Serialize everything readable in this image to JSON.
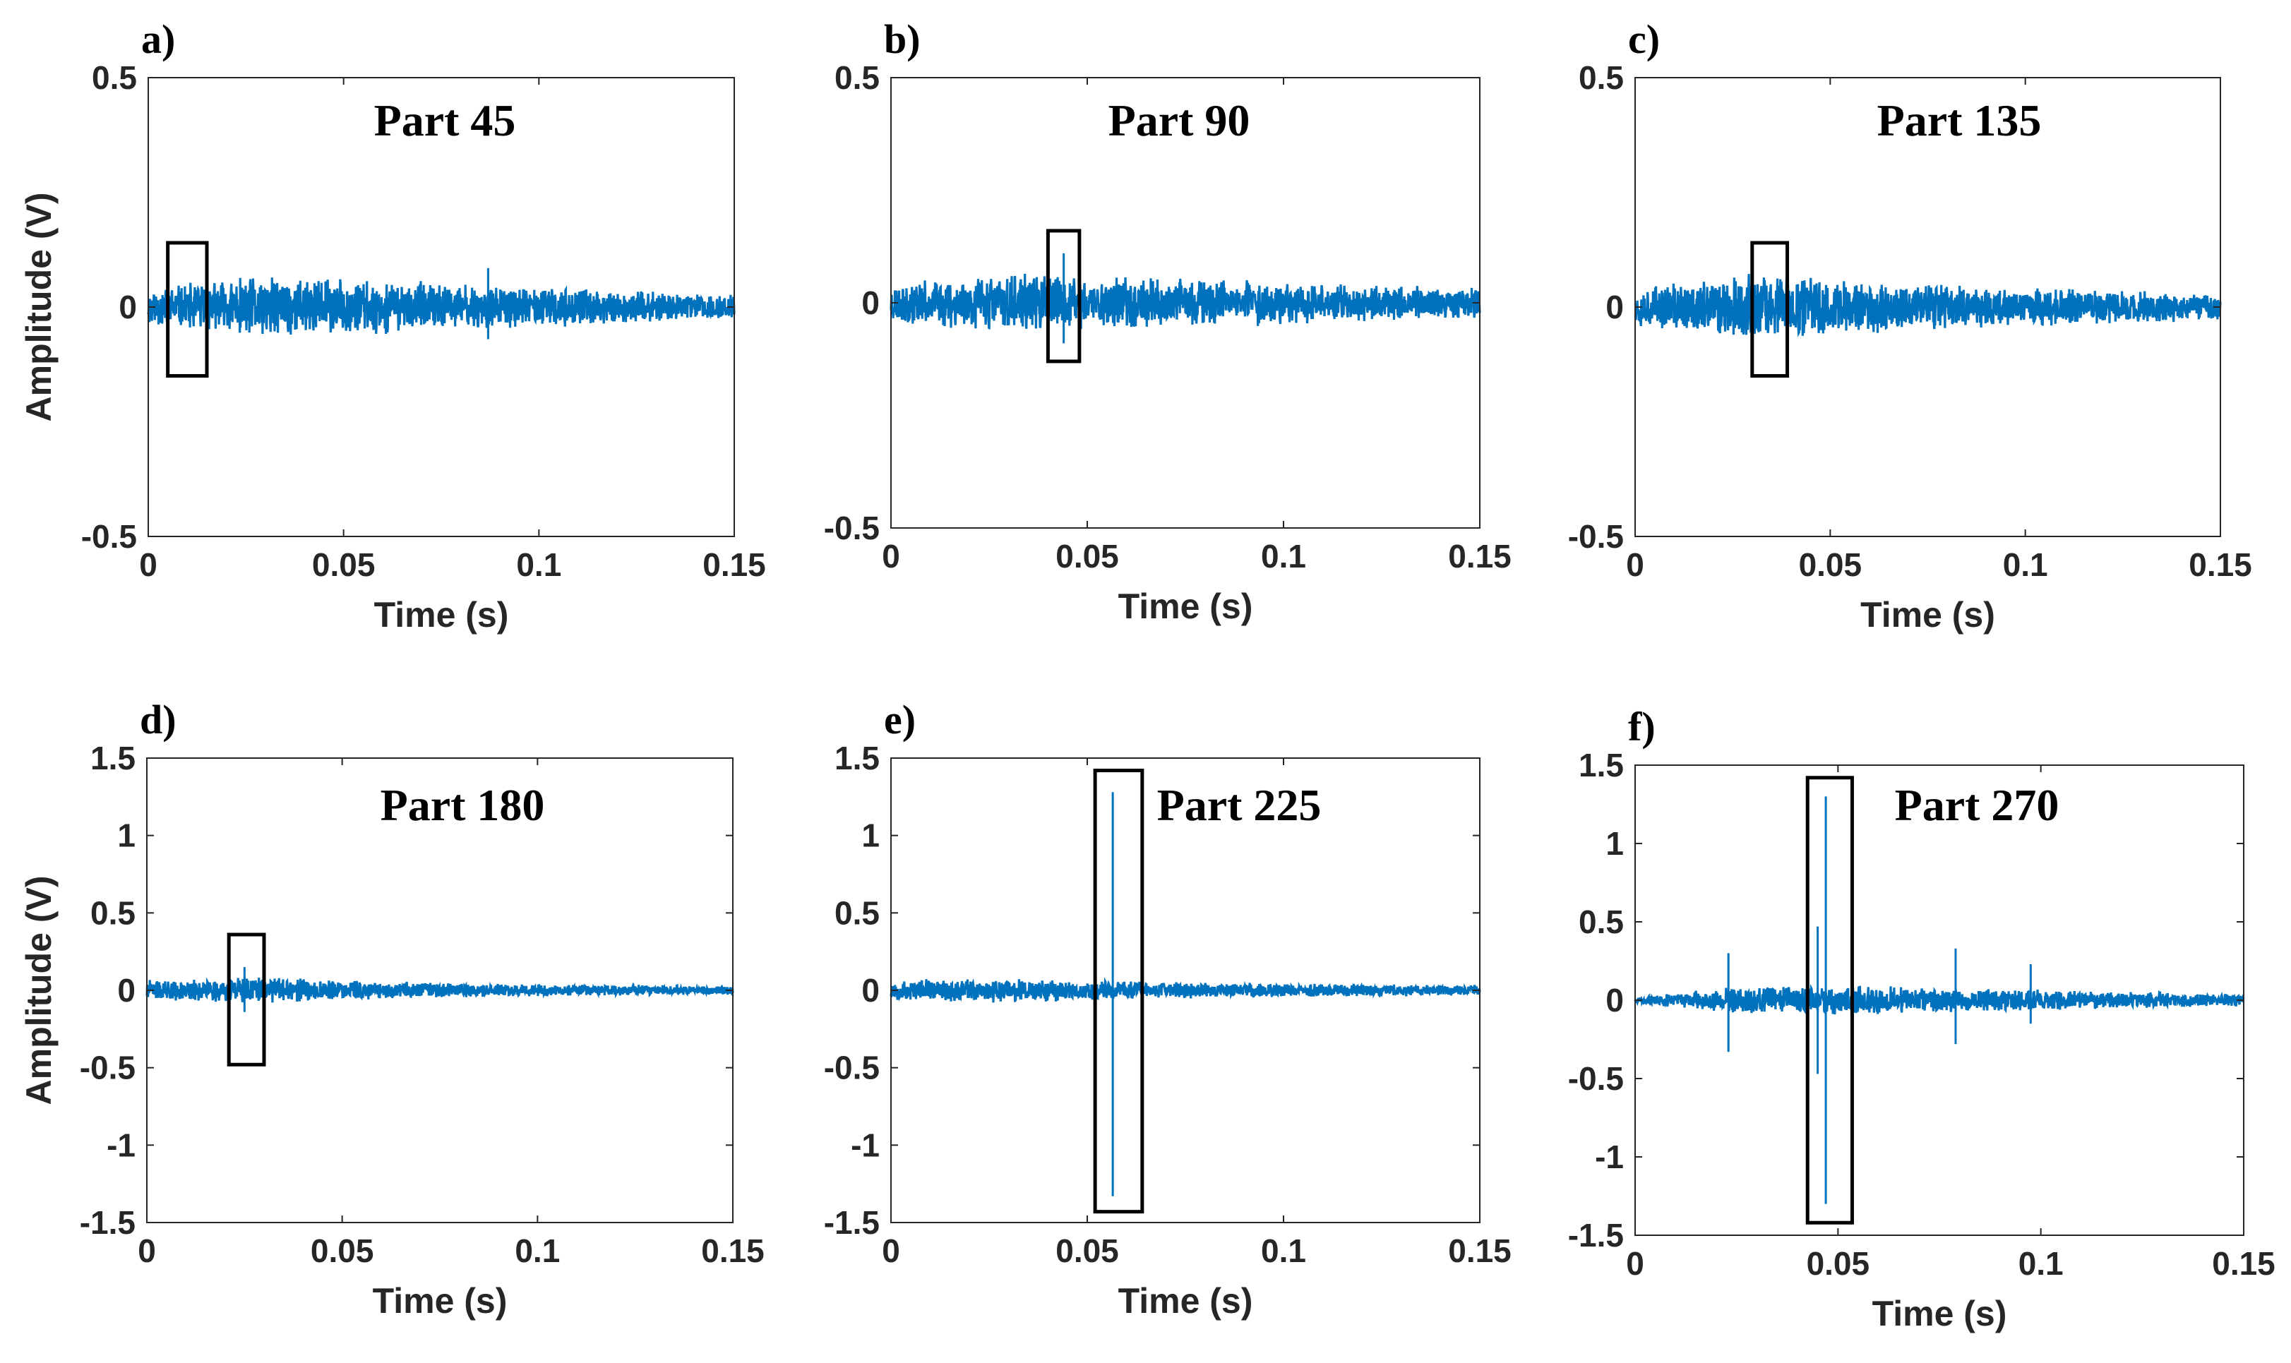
{
  "chart_data": [
    {
      "panel_label": "a)",
      "title": "Part 45",
      "type": "line",
      "xlabel": "Time (s)",
      "ylabel": "Amplitude (V)",
      "xlim": [
        0,
        0.15
      ],
      "ylim": [
        -0.5,
        0.5
      ],
      "xticks": [
        0,
        0.05,
        0.1,
        0.15
      ],
      "xtick_labels": [
        "0",
        "0.05",
        "0.1",
        "0.15"
      ],
      "yticks": [
        -0.5,
        0,
        0.5
      ],
      "ytick_labels": [
        "-0.5",
        "0",
        "0.5"
      ],
      "signal": {
        "envelope": [
          [
            0,
            0.045
          ],
          [
            0.03,
            0.072
          ],
          [
            0.075,
            0.055
          ],
          [
            0.15,
            0.028
          ]
        ],
        "spikes": [
          {
            "x": 0.087,
            "up": 0.085,
            "down": -0.07
          }
        ],
        "seed": 11
      },
      "highlight_box": {
        "x0": 0.005,
        "x1": 0.015,
        "y0": -0.15,
        "y1": 0.14
      }
    },
    {
      "panel_label": "b)",
      "title": "Part 90",
      "type": "line",
      "xlabel": "Time (s)",
      "ylabel": "",
      "xlim": [
        0,
        0.15
      ],
      "ylim": [
        -0.5,
        0.5
      ],
      "xticks": [
        0,
        0.05,
        0.1,
        0.15
      ],
      "xtick_labels": [
        "0",
        "0.05",
        "0.1",
        "0.15"
      ],
      "yticks": [
        -0.5,
        0,
        0.5
      ],
      "ytick_labels": [
        "-0.5",
        "0",
        "0.5"
      ],
      "signal": {
        "envelope": [
          [
            0,
            0.045
          ],
          [
            0.03,
            0.07
          ],
          [
            0.075,
            0.058
          ],
          [
            0.15,
            0.035
          ]
        ],
        "spikes": [
          {
            "x": 0.044,
            "up": 0.11,
            "down": -0.09
          }
        ],
        "seed": 23
      },
      "highlight_box": {
        "x0": 0.04,
        "x1": 0.048,
        "y0": -0.13,
        "y1": 0.16
      }
    },
    {
      "panel_label": "c)",
      "title": "Part 135",
      "type": "line",
      "xlabel": "Time (s)",
      "ylabel": "",
      "xlim": [
        0,
        0.15
      ],
      "ylim": [
        -0.5,
        0.5
      ],
      "xticks": [
        0,
        0.05,
        0.1,
        0.15
      ],
      "xtick_labels": [
        "0",
        "0.05",
        "0.1",
        "0.15"
      ],
      "yticks": [
        -0.5,
        0,
        0.5
      ],
      "ytick_labels": [
        "-0.5",
        "0",
        "0.5"
      ],
      "signal": {
        "envelope": [
          [
            0,
            0.045
          ],
          [
            0.03,
            0.078
          ],
          [
            0.075,
            0.055
          ],
          [
            0.15,
            0.03
          ]
        ],
        "spikes": [],
        "seed": 37
      },
      "highlight_box": {
        "x0": 0.03,
        "x1": 0.039,
        "y0": -0.15,
        "y1": 0.14
      }
    },
    {
      "panel_label": "d)",
      "title": "Part 180",
      "type": "line",
      "xlabel": "Time (s)",
      "ylabel": "Amplitude (V)",
      "xlim": [
        0,
        0.15
      ],
      "ylim": [
        -1.5,
        1.5
      ],
      "xticks": [
        0,
        0.05,
        0.1,
        0.15
      ],
      "xtick_labels": [
        "0",
        "0.05",
        "0.1",
        "0.15"
      ],
      "yticks": [
        -1.5,
        -1,
        -0.5,
        0,
        0.5,
        1,
        1.5
      ],
      "ytick_labels": [
        "-1.5",
        "-1",
        "-0.5",
        "0",
        "0.5",
        "1",
        "1.5"
      ],
      "signal": {
        "envelope": [
          [
            0,
            0.07
          ],
          [
            0.03,
            0.085
          ],
          [
            0.075,
            0.05
          ],
          [
            0.15,
            0.03
          ]
        ],
        "spikes": [
          {
            "x": 0.025,
            "up": 0.15,
            "down": -0.14
          }
        ],
        "seed": 41
      },
      "highlight_box": {
        "x0": 0.021,
        "x1": 0.03,
        "y0": -0.48,
        "y1": 0.36
      }
    },
    {
      "panel_label": "e)",
      "title": "Part 225",
      "type": "line",
      "xlabel": "Time (s)",
      "ylabel": "",
      "xlim": [
        0,
        0.15
      ],
      "ylim": [
        -1.5,
        1.5
      ],
      "xticks": [
        0,
        0.05,
        0.1,
        0.15
      ],
      "xtick_labels": [
        "0",
        "0.05",
        "0.1",
        "0.15"
      ],
      "yticks": [
        -1.5,
        -1,
        -0.5,
        0,
        0.5,
        1,
        1.5
      ],
      "ytick_labels": [
        "-1.5",
        "-1",
        "-0.5",
        "0",
        "0.5",
        "1",
        "1.5"
      ],
      "signal": {
        "envelope": [
          [
            0,
            0.07
          ],
          [
            0.03,
            0.085
          ],
          [
            0.075,
            0.055
          ],
          [
            0.15,
            0.035
          ]
        ],
        "spikes": [
          {
            "x": 0.0565,
            "up": 1.28,
            "down": -1.33
          }
        ],
        "seed": 53
      },
      "highlight_box": {
        "x0": 0.052,
        "x1": 0.064,
        "y0": -1.43,
        "y1": 1.42
      }
    },
    {
      "panel_label": "f)",
      "title": "Part 270",
      "type": "line",
      "xlabel": "Time (s)",
      "ylabel": "",
      "xlim": [
        0,
        0.15
      ],
      "ylim": [
        -1.5,
        1.5
      ],
      "xticks": [
        0,
        0.05,
        0.1,
        0.15
      ],
      "xtick_labels": [
        "0",
        "0.05",
        "0.1",
        "0.15"
      ],
      "yticks": [
        -1.5,
        -1,
        -0.5,
        0,
        0.5,
        1,
        1.5
      ],
      "ytick_labels": [
        "-1.5",
        "-1",
        "-0.5",
        "0",
        "0.5",
        "1",
        "1.5"
      ],
      "signal": {
        "envelope": [
          [
            0,
            0.02
          ],
          [
            0.02,
            0.08
          ],
          [
            0.05,
            0.1
          ],
          [
            0.1,
            0.07
          ],
          [
            0.15,
            0.04
          ]
        ],
        "spikes": [
          {
            "x": 0.023,
            "up": 0.3,
            "down": -0.33
          },
          {
            "x": 0.047,
            "up": 1.3,
            "down": -1.3
          },
          {
            "x": 0.045,
            "up": 0.47,
            "down": -0.47
          },
          {
            "x": 0.079,
            "up": 0.33,
            "down": -0.28
          },
          {
            "x": 0.0975,
            "up": 0.23,
            "down": -0.15
          }
        ],
        "seed": 67
      },
      "highlight_box": {
        "x0": 0.0425,
        "x1": 0.0535,
        "y0": -1.42,
        "y1": 1.42
      }
    }
  ],
  "colors": {
    "signal": "#0072BD",
    "axes": "#262626",
    "box": "#000000"
  }
}
